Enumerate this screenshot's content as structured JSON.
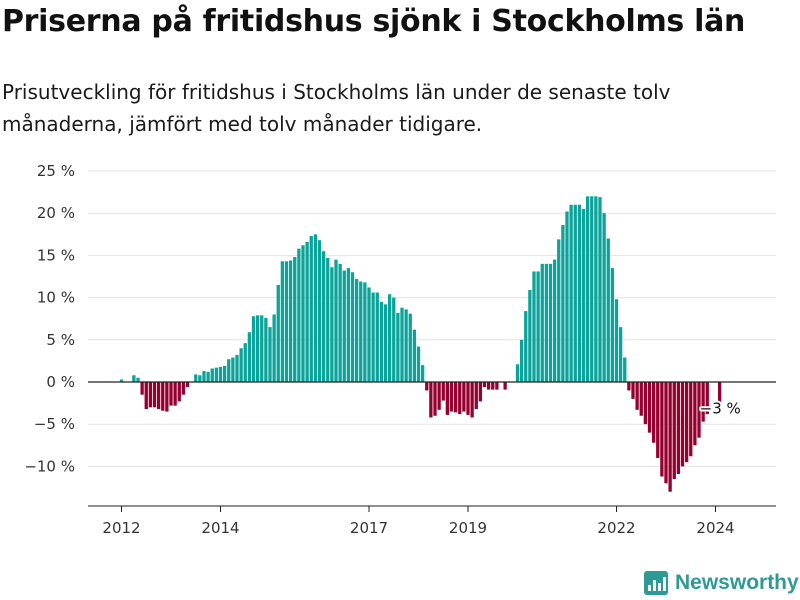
{
  "title": "Priserna på fritidshus sjönk i Stockholms län",
  "subtitle": "Prisutveckling för fritidshus i Stockholms län under de senaste tolv månaderna, jämfört med tolv månader tidigare.",
  "brand": {
    "name": "Newsworthy",
    "icon": "bar-chart-logo-icon"
  },
  "chart_data": {
    "type": "bar",
    "title": "Priserna på fritidshus sjönk i Stockholms län",
    "xlabel": "",
    "ylabel": "",
    "ylim": [
      -15,
      25
    ],
    "y_ticks": [
      25,
      20,
      15,
      10,
      5,
      0,
      -5,
      -10
    ],
    "y_tick_labels": [
      "25 %",
      "20 %",
      "15 %",
      "10 %",
      "5 %",
      "0 %",
      "−5 %",
      "−10 %"
    ],
    "x_start": "2012-01",
    "frequency": "monthly",
    "x_ticks": [
      {
        "label": "2012",
        "index": 0
      },
      {
        "label": "2014",
        "index": 24
      },
      {
        "label": "2017",
        "index": 60
      },
      {
        "label": "2019",
        "index": 84
      },
      {
        "label": "2022",
        "index": 120
      },
      {
        "label": "2024",
        "index": 144
      }
    ],
    "positive_color": "#0ca39a",
    "negative_color": "#960031",
    "values": [
      0.3,
      0,
      0,
      0.8,
      0.5,
      -1.5,
      -3.2,
      -3.0,
      -3.0,
      -3.2,
      -3.4,
      -3.5,
      -2.8,
      -2.8,
      -2.3,
      -1.5,
      -0.6,
      0,
      0.9,
      0.8,
      1.3,
      1.2,
      1.6,
      1.7,
      1.8,
      1.9,
      2.7,
      2.9,
      3.2,
      4.0,
      4.6,
      5.9,
      7.8,
      7.9,
      7.9,
      7.6,
      6.5,
      8.0,
      11.5,
      14.3,
      14.3,
      14.4,
      14.8,
      15.8,
      16.2,
      16.6,
      17.3,
      17.5,
      16.8,
      15.5,
      14.7,
      13.6,
      14.5,
      14.0,
      13.2,
      13.5,
      13.0,
      12.2,
      11.9,
      11.8,
      11.2,
      10.6,
      10.6,
      9.5,
      9.2,
      10.4,
      10.0,
      8.2,
      8.8,
      8.6,
      8.1,
      6.2,
      4.2,
      2.0,
      -1.0,
      -4.2,
      -4.0,
      -3.3,
      -2.2,
      -3.9,
      -3.5,
      -3.6,
      -3.8,
      -3.5,
      -3.9,
      -4.2,
      -3.2,
      -2.3,
      -0.6,
      -0.9,
      -0.9,
      -0.9,
      0,
      -0.9,
      0,
      0,
      2.1,
      5.0,
      8.4,
      10.9,
      13.1,
      13.1,
      14.0,
      14.0,
      14.0,
      14.5,
      16.9,
      18.6,
      20.2,
      21.0,
      21.0,
      21.0,
      20.5,
      22.0,
      22.0,
      22.0,
      21.9,
      20.0,
      17.0,
      13.5,
      9.8,
      6.5,
      2.9,
      -1.0,
      -2.0,
      -3.3,
      -4.0,
      -5.0,
      -6.0,
      -7.2,
      -9.0,
      -11.2,
      -12.0,
      -13.0,
      -11.5,
      -10.9,
      -10.0,
      -9.5,
      -8.8,
      -7.5,
      -6.6,
      -4.7,
      -3.8,
      0,
      0,
      -3.0
    ],
    "annotations": [
      {
        "index": 145,
        "text": "−3 %"
      }
    ]
  }
}
